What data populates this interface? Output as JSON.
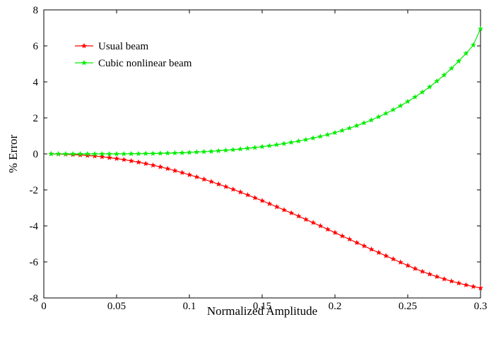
{
  "chart_data": {
    "type": "line",
    "title": "",
    "xlabel": "Normalized Amplitude",
    "ylabel": "% Error",
    "xlim": [
      0,
      0.3
    ],
    "ylim": [
      -8,
      8
    ],
    "xticks": [
      0,
      0.05,
      0.1,
      0.15,
      0.2,
      0.25,
      0.3
    ],
    "xtick_labels": [
      "0",
      "0.05",
      "0.1",
      "0.15",
      "0.2",
      "0.25",
      "0.3"
    ],
    "yticks": [
      -8,
      -6,
      -4,
      -2,
      0,
      2,
      4,
      6,
      8
    ],
    "ytick_labels": [
      "-8",
      "-6",
      "-4",
      "-2",
      "0",
      "2",
      "4",
      "6",
      "8"
    ],
    "grid": false,
    "legend_position": "top-left",
    "x": [
      0.005,
      0.01,
      0.015,
      0.02,
      0.025,
      0.03,
      0.035,
      0.04,
      0.045,
      0.05,
      0.055,
      0.06,
      0.065,
      0.07,
      0.075,
      0.08,
      0.085,
      0.09,
      0.095,
      0.1,
      0.105,
      0.11,
      0.115,
      0.12,
      0.125,
      0.13,
      0.135,
      0.14,
      0.145,
      0.15,
      0.155,
      0.16,
      0.165,
      0.17,
      0.175,
      0.18,
      0.185,
      0.19,
      0.195,
      0.2,
      0.205,
      0.21,
      0.215,
      0.22,
      0.225,
      0.23,
      0.235,
      0.24,
      0.245,
      0.25,
      0.255,
      0.26,
      0.265,
      0.27,
      0.275,
      0.28,
      0.285,
      0.29,
      0.295,
      0.3
    ],
    "series": [
      {
        "name": "Usual beam",
        "color": "#ff0000",
        "values": [
          0,
          -0.01,
          -0.02,
          -0.04,
          -0.06,
          -0.09,
          -0.12,
          -0.16,
          -0.21,
          -0.26,
          -0.32,
          -0.39,
          -0.46,
          -0.54,
          -0.63,
          -0.72,
          -0.82,
          -0.93,
          -1.04,
          -1.16,
          -1.28,
          -1.41,
          -1.54,
          -1.68,
          -1.82,
          -1.97,
          -2.12,
          -2.28,
          -2.44,
          -2.6,
          -2.77,
          -2.94,
          -3.11,
          -3.28,
          -3.46,
          -3.64,
          -3.82,
          -4.0,
          -4.19,
          -4.37,
          -4.56,
          -4.74,
          -4.93,
          -5.11,
          -5.3,
          -5.48,
          -5.66,
          -5.84,
          -6.02,
          -6.2,
          -6.37,
          -6.53,
          -6.68,
          -6.82,
          -6.95,
          -7.07,
          -7.18,
          -7.28,
          -7.37,
          -7.45
        ]
      },
      {
        "name": "Cubic nonlinear beam",
        "color": "#00ee00",
        "values": [
          0,
          0,
          0,
          0,
          0,
          0,
          0,
          0,
          0,
          0,
          0,
          0.01,
          0.01,
          0.02,
          0.02,
          0.03,
          0.04,
          0.05,
          0.06,
          0.08,
          0.1,
          0.12,
          0.14,
          0.17,
          0.2,
          0.23,
          0.27,
          0.31,
          0.35,
          0.4,
          0.45,
          0.51,
          0.57,
          0.64,
          0.71,
          0.79,
          0.88,
          0.97,
          1.07,
          1.18,
          1.3,
          1.43,
          1.57,
          1.72,
          1.88,
          2.06,
          2.25,
          2.45,
          2.67,
          2.91,
          3.16,
          3.43,
          3.72,
          4.04,
          4.38,
          4.75,
          5.15,
          5.58,
          6.04,
          6.95
        ]
      }
    ]
  }
}
